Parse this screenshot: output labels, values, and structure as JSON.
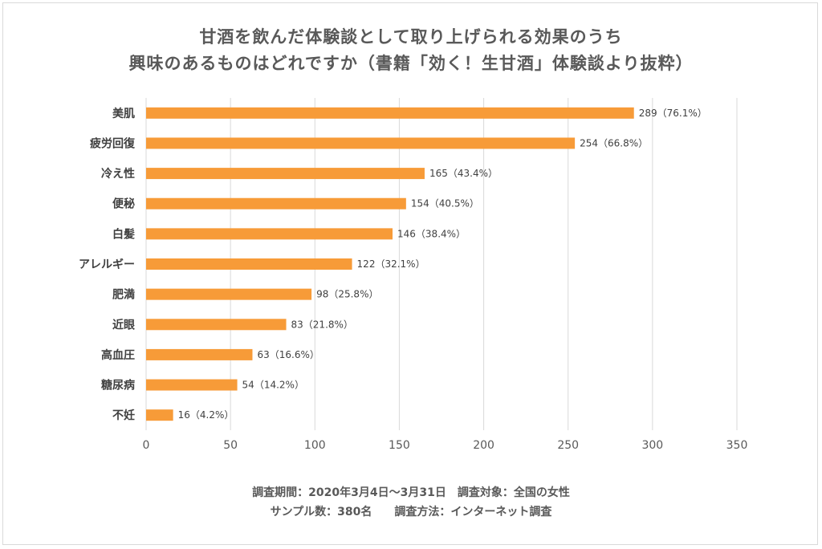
{
  "title_line1": "甘酒を飲んだ体験談として取り上げられる効果のうち",
  "title_line2": "興味のあるものはどれですか（書籍「効く！生甘酒」体験談より抜粋）",
  "footer_line1": "調査期間：2020年3月4日～3月31日　調査対象：全国の女性",
  "footer_line2": "サンプル数：380名　　調査方法：インターネット調査",
  "chart_data": {
    "type": "bar",
    "orientation": "horizontal",
    "bar_color": "#F79B38",
    "grid": true,
    "xlim": [
      0,
      350
    ],
    "xticks": [
      "0",
      "50",
      "100",
      "150",
      "200",
      "250",
      "300",
      "350"
    ],
    "xtick_values": [
      0,
      50,
      100,
      150,
      200,
      250,
      300,
      350
    ],
    "categories": [
      "美肌",
      "疲労回復",
      "冷え性",
      "便秘",
      "白髪",
      "アレルギー",
      "肥満",
      "近眼",
      "高血圧",
      "糖尿病",
      "不妊"
    ],
    "values": [
      289,
      254,
      165,
      154,
      146,
      122,
      98,
      83,
      63,
      54,
      16
    ],
    "data_labels": [
      "289（76.1%）",
      "254（66.8%）",
      "165（43.4%）",
      "154（40.5%）",
      "146（38.4%）",
      "122（32.1%）",
      "98（25.8%）",
      "83（21.8%）",
      "63（16.6%）",
      "54（14.2%）",
      "16（4.2%）"
    ]
  }
}
